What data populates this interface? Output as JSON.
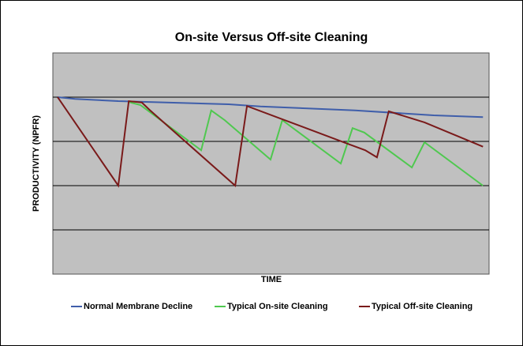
{
  "chart_data": {
    "type": "line",
    "title": "On-site Versus Off-site Cleaning",
    "x_label": "TIME",
    "y_label": "PRODUCTIVITY (NPFR)",
    "xlim": [
      0,
      100
    ],
    "ylim": [
      0,
      5
    ],
    "yticks": [
      1,
      2,
      3,
      4
    ],
    "grid": true,
    "legend": "bottom",
    "series": [
      {
        "name": "Normal Membrane Decline",
        "color": "#3f5eaa",
        "x": [
          1.1,
          5.1,
          15.0,
          40.3,
          47.6,
          69.3,
          87.3,
          98.6
        ],
        "values": [
          4.0,
          3.96,
          3.91,
          3.84,
          3.79,
          3.7,
          3.59,
          3.55
        ]
      },
      {
        "name": "Typical On-site Cleaning",
        "color": "#4fc84f",
        "x": [
          17.4,
          20.1,
          34.0,
          36.3,
          39.4,
          49.9,
          52.6,
          66.0,
          68.7,
          71.4,
          82.3,
          85.2,
          98.6
        ],
        "values": [
          3.89,
          3.82,
          2.8,
          3.7,
          3.48,
          2.59,
          3.48,
          2.5,
          3.3,
          3.2,
          2.41,
          2.98,
          2.0
        ]
      },
      {
        "name": "Typical Off-site Cleaning",
        "color": "#7a1a1a",
        "x": [
          1.1,
          15.0,
          17.4,
          20.4,
          22.2,
          41.8,
          44.5,
          52.1,
          67.5,
          71.6,
          74.3,
          77.0,
          85.2,
          98.6
        ],
        "values": [
          4.0,
          2.0,
          3.91,
          3.88,
          3.71,
          2.0,
          3.8,
          3.52,
          2.95,
          2.8,
          2.64,
          3.68,
          3.43,
          2.88
        ]
      }
    ]
  }
}
